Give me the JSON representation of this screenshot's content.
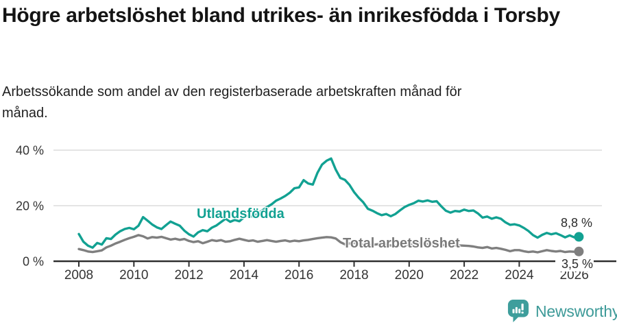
{
  "header": {
    "title": "Högre arbetslöshet bland utrikes- än inrikesfödda i Torsby",
    "subtitle": "Arbetssökande som andel av den registerbaserade arbetskraften månad för månad."
  },
  "colors": {
    "foreign_born_line": "#12a192",
    "total_line": "#7f7f7f",
    "axis": "#2f2f2f",
    "gridline": "#dbdbdb",
    "tick_text": "#333333",
    "brand_teal": "#3d9a98"
  },
  "chart_data": {
    "type": "line",
    "title": "Högre arbetslöshet bland utrikes- än inrikesfödda i Torsby",
    "subtitle": "Arbetssökande som andel av den registerbaserade arbetskraften månad för månad.",
    "unit": "%",
    "x_start": 2008.0,
    "x_step_years": 0.1666667,
    "xlim": [
      2007.1,
      2026.6
    ],
    "ylim": [
      0,
      42
    ],
    "grid": "horizontal-only",
    "legend_position": "inline-labels-on-chart",
    "yticks": [
      {
        "value": 0,
        "label": "0 %"
      },
      {
        "value": 20,
        "label": "20 %"
      },
      {
        "value": 40,
        "label": "40 %"
      }
    ],
    "xticks": [
      {
        "value": 2008,
        "label": "2008"
      },
      {
        "value": 2010,
        "label": "2010"
      },
      {
        "value": 2012,
        "label": "2012"
      },
      {
        "value": 2014,
        "label": "2014"
      },
      {
        "value": 2016,
        "label": "2016"
      },
      {
        "value": 2018,
        "label": "2018"
      },
      {
        "value": 2020,
        "label": "2020"
      },
      {
        "value": 2022,
        "label": "2022"
      },
      {
        "value": 2024,
        "label": "2024"
      },
      {
        "value": 2026,
        "label": "2026"
      }
    ],
    "series": [
      {
        "name": "Utlandsfödda",
        "color": "#12a192",
        "end_label": "8,8 %",
        "end_value": 8.8,
        "values": [
          9.8,
          7.0,
          5.6,
          4.9,
          6.6,
          6.0,
          8.3,
          8.0,
          9.6,
          10.8,
          11.6,
          12.0,
          11.5,
          12.8,
          15.9,
          14.6,
          13.2,
          12.2,
          11.6,
          13.0,
          14.3,
          13.5,
          12.8,
          11.0,
          9.7,
          8.9,
          10.4,
          11.2,
          10.8,
          12.1,
          12.9,
          14.1,
          15.3,
          14.2,
          14.9,
          14.4,
          15.8,
          16.5,
          16.0,
          17.2,
          18.3,
          19.5,
          20.5,
          21.8,
          22.6,
          23.5,
          24.7,
          26.3,
          26.6,
          29.2,
          28.0,
          27.6,
          31.8,
          34.8,
          36.2,
          37.0,
          33.0,
          30.0,
          29.3,
          27.5,
          24.9,
          22.9,
          21.2,
          18.9,
          18.2,
          17.3,
          16.6,
          17.0,
          16.2,
          17.0,
          18.3,
          19.5,
          20.3,
          20.9,
          21.8,
          21.5,
          21.9,
          21.4,
          21.6,
          19.8,
          18.2,
          17.5,
          18.1,
          17.9,
          18.6,
          18.1,
          18.3,
          17.2,
          15.7,
          16.1,
          15.3,
          15.8,
          15.3,
          14.0,
          13.1,
          13.3,
          12.9,
          12.0,
          10.9,
          9.4,
          8.5,
          9.5,
          10.2,
          9.7,
          10.1,
          9.4,
          8.6,
          9.3,
          8.6,
          8.8
        ]
      },
      {
        "name": "Total arbetslöshet",
        "color": "#7f7f7f",
        "end_label": "3,5 %",
        "end_value": 3.5,
        "values": [
          4.4,
          4.0,
          3.5,
          3.3,
          3.6,
          3.9,
          5.0,
          5.6,
          6.4,
          7.0,
          7.7,
          8.3,
          8.8,
          9.4,
          9.0,
          8.2,
          8.7,
          8.5,
          8.8,
          8.3,
          7.8,
          8.1,
          7.7,
          8.0,
          7.3,
          6.9,
          7.2,
          6.5,
          7.0,
          7.6,
          7.3,
          7.6,
          7.0,
          7.2,
          7.7,
          8.1,
          7.7,
          7.3,
          7.5,
          7.0,
          7.3,
          7.6,
          7.3,
          7.0,
          7.3,
          7.5,
          7.1,
          7.4,
          7.2,
          7.5,
          7.7,
          8.0,
          8.3,
          8.5,
          8.7,
          8.6,
          8.2,
          6.9,
          6.1,
          6.4,
          6.6,
          6.3,
          6.0,
          5.7,
          5.9,
          6.1,
          6.3,
          6.0,
          5.7,
          5.5,
          5.7,
          5.9,
          5.8,
          6.2,
          6.6,
          6.4,
          6.2,
          6.3,
          6.2,
          6.0,
          5.7,
          5.5,
          5.6,
          5.7,
          5.6,
          5.5,
          5.3,
          5.0,
          4.8,
          5.1,
          4.6,
          4.8,
          4.5,
          4.1,
          3.6,
          4.0,
          4.0,
          3.6,
          3.3,
          3.5,
          3.2,
          3.6,
          4.0,
          3.7,
          3.5,
          3.7,
          3.3,
          3.5,
          3.4,
          3.5
        ]
      }
    ]
  },
  "footer": {
    "brand": "Newsworthy"
  }
}
